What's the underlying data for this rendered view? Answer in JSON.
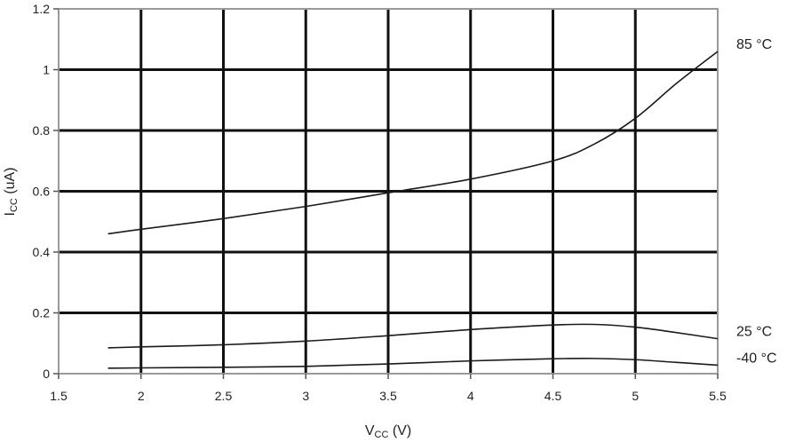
{
  "chart_data": {
    "type": "line",
    "xlabel": {
      "main": "V",
      "sub": "CC",
      "rest": " (V)"
    },
    "ylabel": {
      "main": "I",
      "sub": "CC",
      "rest": " (uA)"
    },
    "xlim": [
      1.5,
      5.5
    ],
    "ylim": [
      0,
      1.2
    ],
    "xticks": [
      1.5,
      2,
      2.5,
      3,
      3.5,
      4,
      4.5,
      5,
      5.5
    ],
    "yticks": [
      0,
      0.2,
      0.4,
      0.6,
      0.8,
      1,
      1.2
    ],
    "xtick_labels": [
      "1.5",
      "2",
      "2.5",
      "3",
      "3.5",
      "4",
      "4.5",
      "5",
      "5.5"
    ],
    "ytick_labels": [
      "0",
      "0.2",
      "0.4",
      "0.6",
      "0.8",
      "1",
      "1.2"
    ],
    "grid": true,
    "series": [
      {
        "name": "85 °C",
        "x": [
          1.8,
          2.0,
          2.5,
          3.0,
          3.5,
          4.0,
          4.5,
          4.75,
          5.0,
          5.25,
          5.5
        ],
        "values": [
          0.46,
          0.475,
          0.51,
          0.55,
          0.595,
          0.64,
          0.7,
          0.755,
          0.84,
          0.955,
          1.06
        ]
      },
      {
        "name": "25 °C",
        "x": [
          1.8,
          2.0,
          2.5,
          3.0,
          3.5,
          4.0,
          4.5,
          4.75,
          5.0,
          5.25,
          5.5
        ],
        "values": [
          0.085,
          0.088,
          0.095,
          0.107,
          0.125,
          0.145,
          0.16,
          0.162,
          0.153,
          0.135,
          0.115
        ]
      },
      {
        "name": "-40 °C",
        "x": [
          1.8,
          2.0,
          2.5,
          3.0,
          3.5,
          4.0,
          4.5,
          4.75,
          5.0,
          5.25,
          5.5
        ],
        "values": [
          0.018,
          0.019,
          0.021,
          0.024,
          0.032,
          0.042,
          0.049,
          0.05,
          0.046,
          0.037,
          0.028
        ]
      }
    ]
  }
}
